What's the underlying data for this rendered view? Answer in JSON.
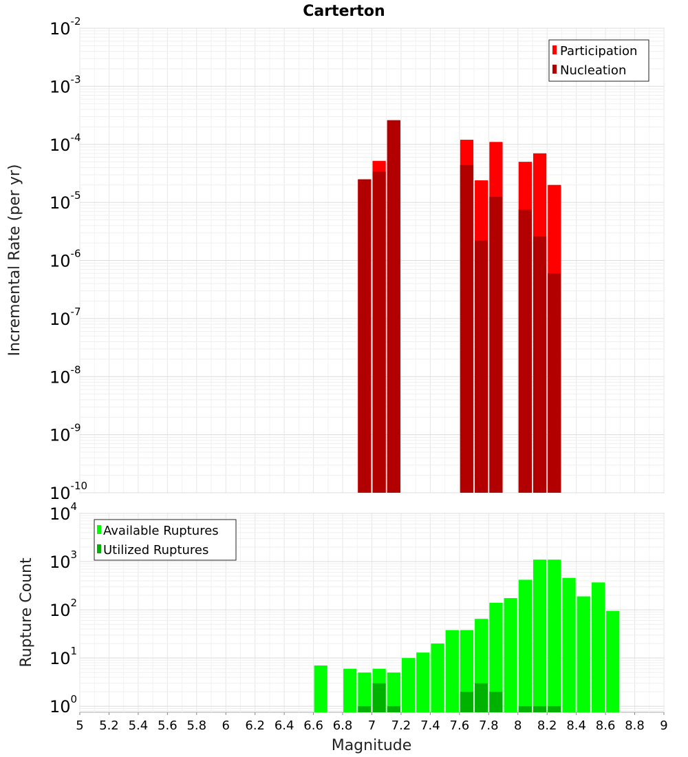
{
  "chart_data": [
    {
      "type": "bar",
      "title": "Carterton",
      "ylabel": "Incremental Rate (per yr)",
      "xlabel": "",
      "y_scale": "log",
      "ylim": [
        1e-10,
        0.01
      ],
      "xlim": [
        5,
        9
      ],
      "grid": true,
      "legend_position": "top-right",
      "colors": {
        "Participation": "#ff0000",
        "Nucleation": "#b20000"
      },
      "y_tick_labels": [
        {
          "base": "10",
          "exp": "-10"
        },
        {
          "base": "10",
          "exp": "-9"
        },
        {
          "base": "10",
          "exp": "-8"
        },
        {
          "base": "10",
          "exp": "-7"
        },
        {
          "base": "10",
          "exp": "-6"
        },
        {
          "base": "10",
          "exp": "-5"
        },
        {
          "base": "10",
          "exp": "-4"
        },
        {
          "base": "10",
          "exp": "-3"
        },
        {
          "base": "10",
          "exp": "-2"
        }
      ],
      "x": [
        6.95,
        7.05,
        7.15,
        7.65,
        7.75,
        7.85,
        8.05,
        8.15,
        8.25
      ],
      "series": [
        {
          "name": "Participation",
          "values": [
            2.5e-05,
            5.2e-05,
            0.00026,
            0.00012,
            2.4e-05,
            0.00011,
            5e-05,
            7e-05,
            2e-05
          ]
        },
        {
          "name": "Nucleation",
          "values": [
            2.5e-05,
            3.4e-05,
            0.00026,
            4.4e-05,
            2.2e-06,
            1.25e-05,
            7.5e-06,
            2.6e-06,
            6e-07
          ]
        }
      ]
    },
    {
      "type": "bar",
      "title": "",
      "ylabel": "Rupture Count",
      "xlabel": "Magnitude",
      "y_scale": "log",
      "ylim": [
        0.75,
        10000
      ],
      "xlim": [
        5,
        9
      ],
      "grid": true,
      "legend_position": "top-left",
      "colors": {
        "Available Ruptures": "#00ff00",
        "Utilized Ruptures": "#00b200"
      },
      "x_tick_labels": [
        "5",
        "5.2",
        "5.4",
        "5.6",
        "5.8",
        "6",
        "6.2",
        "6.4",
        "6.6",
        "6.8",
        "7",
        "7.2",
        "7.4",
        "7.6",
        "7.8",
        "8",
        "8.2",
        "8.4",
        "8.6",
        "8.8",
        "9"
      ],
      "y_tick_labels": [
        {
          "base": "10",
          "exp": "0"
        },
        {
          "base": "10",
          "exp": "1"
        },
        {
          "base": "10",
          "exp": "2"
        },
        {
          "base": "10",
          "exp": "3"
        },
        {
          "base": "10",
          "exp": "4"
        }
      ],
      "x": [
        6.65,
        6.85,
        6.95,
        7.05,
        7.15,
        7.25,
        7.35,
        7.45,
        7.55,
        7.65,
        7.75,
        7.85,
        7.95,
        8.05,
        8.15,
        8.25,
        8.35,
        8.45,
        8.55,
        8.65
      ],
      "series": [
        {
          "name": "Available Ruptures",
          "values": [
            7,
            6,
            5,
            6,
            5,
            10,
            13,
            20,
            38,
            38,
            65,
            140,
            175,
            420,
            1100,
            1100,
            460,
            190,
            370,
            95
          ]
        },
        {
          "name": "Utilized Ruptures",
          "values": [
            0,
            0,
            1,
            3,
            1,
            0,
            0,
            0,
            0,
            2,
            3,
            2,
            0,
            1,
            1,
            1,
            0,
            0,
            0,
            0
          ]
        }
      ]
    }
  ]
}
